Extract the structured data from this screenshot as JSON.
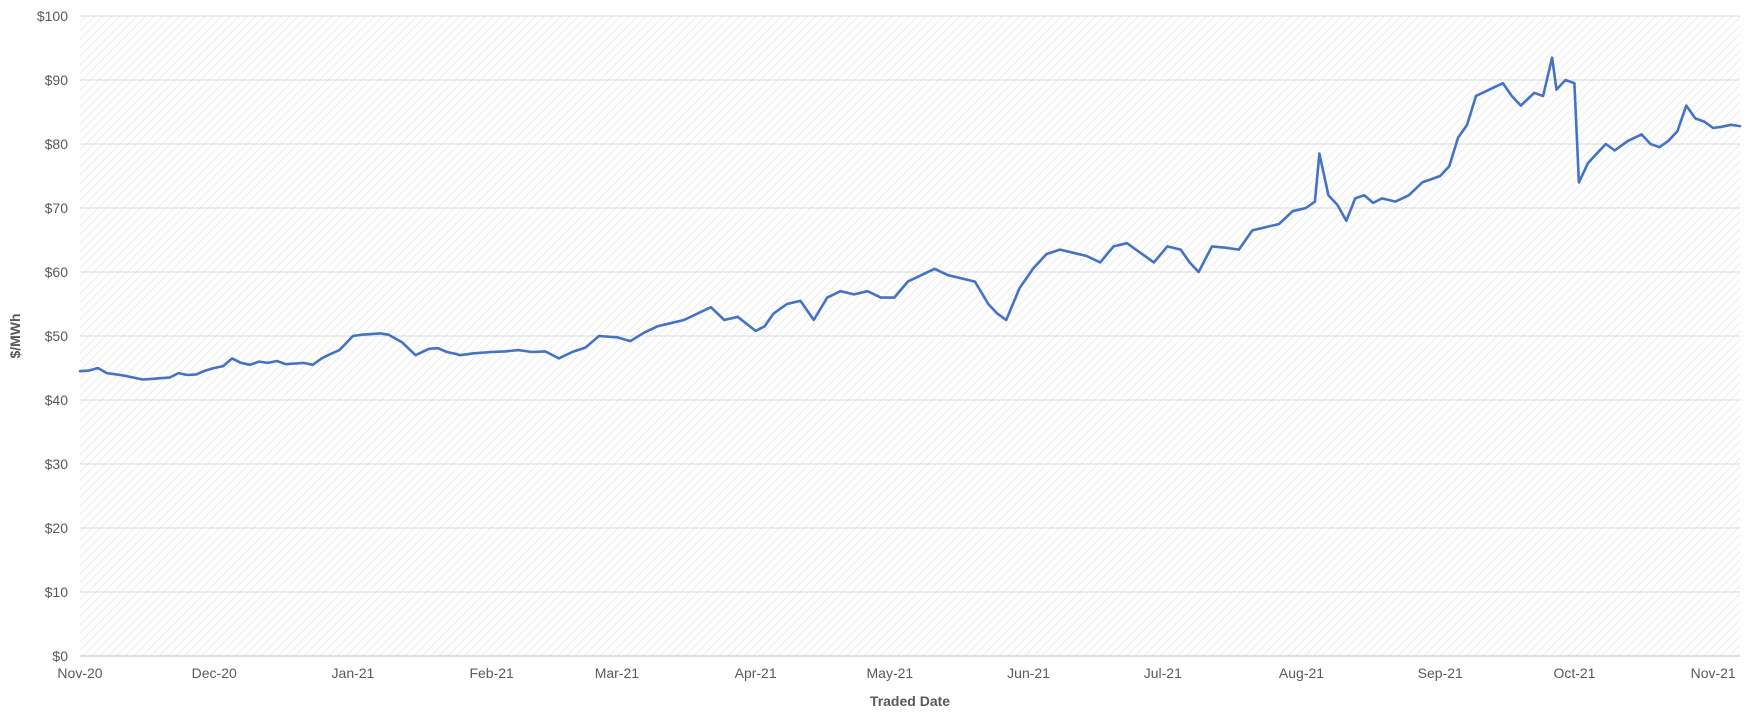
{
  "chart_data": {
    "type": "line",
    "title": "",
    "xlabel": "Traded Date",
    "ylabel": "$/MWh",
    "ylim": [
      0,
      100
    ],
    "y_ticks": [
      0,
      10,
      20,
      30,
      40,
      50,
      60,
      70,
      80,
      90,
      100
    ],
    "y_tick_labels": [
      "$0",
      "$10",
      "$20",
      "$30",
      "$40",
      "$50",
      "$60",
      "$70",
      "$80",
      "$90",
      "$100"
    ],
    "xlim": [
      "2020-11-01",
      "2021-11-07"
    ],
    "x_ticks": [
      "2020-11-01",
      "2020-12-01",
      "2021-01-01",
      "2021-02-01",
      "2021-03-01",
      "2021-04-01",
      "2021-05-01",
      "2021-06-01",
      "2021-07-01",
      "2021-08-01",
      "2021-09-01",
      "2021-10-01",
      "2021-11-01"
    ],
    "x_tick_labels": [
      "Nov-20",
      "Dec-20",
      "Jan-21",
      "Feb-21",
      "Mar-21",
      "Apr-21",
      "May-21",
      "Jun-21",
      "Jul-21",
      "Aug-21",
      "Sep-21",
      "Oct-21",
      "Nov-21"
    ],
    "grid": true,
    "colors": {
      "series": "#4472C4",
      "gridline": "#d9d9d9",
      "hatch": "#d9d9d9",
      "text": "#595959"
    },
    "series": [
      {
        "x": [
          "2020-11-01",
          "2020-11-03",
          "2020-11-05",
          "2020-11-07",
          "2020-11-09",
          "2020-11-11",
          "2020-11-13",
          "2020-11-15",
          "2020-11-17",
          "2020-11-19",
          "2020-11-21",
          "2020-11-23",
          "2020-11-25",
          "2020-11-27",
          "2020-11-29",
          "2020-12-01",
          "2020-12-03",
          "2020-12-05",
          "2020-12-07",
          "2020-12-09",
          "2020-12-11",
          "2020-12-13",
          "2020-12-15",
          "2020-12-17",
          "2020-12-19",
          "2020-12-21",
          "2020-12-23",
          "2020-12-25",
          "2020-12-27",
          "2020-12-29",
          "2021-01-01",
          "2021-01-03",
          "2021-01-05",
          "2021-01-07",
          "2021-01-09",
          "2021-01-12",
          "2021-01-15",
          "2021-01-18",
          "2021-01-20",
          "2021-01-22",
          "2021-01-24",
          "2021-01-25",
          "2021-01-28",
          "2021-02-01",
          "2021-02-04",
          "2021-02-07",
          "2021-02-10",
          "2021-02-13",
          "2021-02-16",
          "2021-02-19",
          "2021-02-22",
          "2021-02-25",
          "2021-03-01",
          "2021-03-04",
          "2021-03-07",
          "2021-03-10",
          "2021-03-13",
          "2021-03-16",
          "2021-03-19",
          "2021-03-22",
          "2021-03-25",
          "2021-03-28",
          "2021-04-01",
          "2021-04-03",
          "2021-04-05",
          "2021-04-08",
          "2021-04-11",
          "2021-04-14",
          "2021-04-17",
          "2021-04-20",
          "2021-04-23",
          "2021-04-26",
          "2021-04-29",
          "2021-05-02",
          "2021-05-05",
          "2021-05-08",
          "2021-05-11",
          "2021-05-14",
          "2021-05-17",
          "2021-05-20",
          "2021-05-23",
          "2021-05-25",
          "2021-05-27",
          "2021-05-30",
          "2021-06-02",
          "2021-06-05",
          "2021-06-08",
          "2021-06-11",
          "2021-06-14",
          "2021-06-17",
          "2021-06-20",
          "2021-06-23",
          "2021-06-26",
          "2021-06-29",
          "2021-07-02",
          "2021-07-05",
          "2021-07-07",
          "2021-07-09",
          "2021-07-12",
          "2021-07-15",
          "2021-07-18",
          "2021-07-21",
          "2021-07-24",
          "2021-07-27",
          "2021-07-30",
          "2021-08-02",
          "2021-08-04",
          "2021-08-05",
          "2021-08-07",
          "2021-08-09",
          "2021-08-11",
          "2021-08-13",
          "2021-08-15",
          "2021-08-17",
          "2021-08-19",
          "2021-08-22",
          "2021-08-25",
          "2021-08-28",
          "2021-09-01",
          "2021-09-03",
          "2021-09-05",
          "2021-09-07",
          "2021-09-09",
          "2021-09-12",
          "2021-09-15",
          "2021-09-17",
          "2021-09-19",
          "2021-09-22",
          "2021-09-24",
          "2021-09-26",
          "2021-09-27",
          "2021-09-29",
          "2021-10-01",
          "2021-10-02",
          "2021-10-04",
          "2021-10-06",
          "2021-10-08",
          "2021-10-10",
          "2021-10-13",
          "2021-10-16",
          "2021-10-18",
          "2021-10-20",
          "2021-10-22",
          "2021-10-24",
          "2021-10-26",
          "2021-10-28",
          "2021-10-30",
          "2021-11-01",
          "2021-11-03",
          "2021-11-05",
          "2021-11-07"
        ],
        "values": [
          44.5,
          44.6,
          45.0,
          44.2,
          44.0,
          43.8,
          43.5,
          43.2,
          43.3,
          43.4,
          43.5,
          44.2,
          43.9,
          44.0,
          44.6,
          45.0,
          45.3,
          46.5,
          45.8,
          45.5,
          46.0,
          45.8,
          46.1,
          45.6,
          45.7,
          45.8,
          45.5,
          46.5,
          47.2,
          47.8,
          50.0,
          50.2,
          50.3,
          50.4,
          50.2,
          49.0,
          47.0,
          48.0,
          48.1,
          47.5,
          47.2,
          47.0,
          47.3,
          47.5,
          47.6,
          47.8,
          47.5,
          47.6,
          46.5,
          47.5,
          48.2,
          50.0,
          49.8,
          49.2,
          50.5,
          51.5,
          52.0,
          52.5,
          53.5,
          54.5,
          52.5,
          53.0,
          50.8,
          51.5,
          53.5,
          55.0,
          55.5,
          52.5,
          56.0,
          57.0,
          56.5,
          57.0,
          56.0,
          56.0,
          58.5,
          59.5,
          60.5,
          59.5,
          59.0,
          58.5,
          55.0,
          53.5,
          52.5,
          57.5,
          60.5,
          62.8,
          63.5,
          63.0,
          62.5,
          61.5,
          64.0,
          64.5,
          63.0,
          61.5,
          64.0,
          63.5,
          61.5,
          60.0,
          64.0,
          63.8,
          63.5,
          66.5,
          67.0,
          67.5,
          69.5,
          70.0,
          71.0,
          78.5,
          72.0,
          70.5,
          68.0,
          71.5,
          72.0,
          70.8,
          71.5,
          71.0,
          72.0,
          74.0,
          75.0,
          76.5,
          81.0,
          83.0,
          87.5,
          88.5,
          89.5,
          87.5,
          86.0,
          88.0,
          87.5,
          93.5,
          88.5,
          90.0,
          89.5,
          74.0,
          77.0,
          78.5,
          80.0,
          79.0,
          80.5,
          81.5,
          80.0,
          79.5,
          80.5,
          82.0,
          86.0,
          84.0,
          83.5,
          82.5,
          82.7,
          83.0,
          82.8
        ]
      }
    ]
  }
}
